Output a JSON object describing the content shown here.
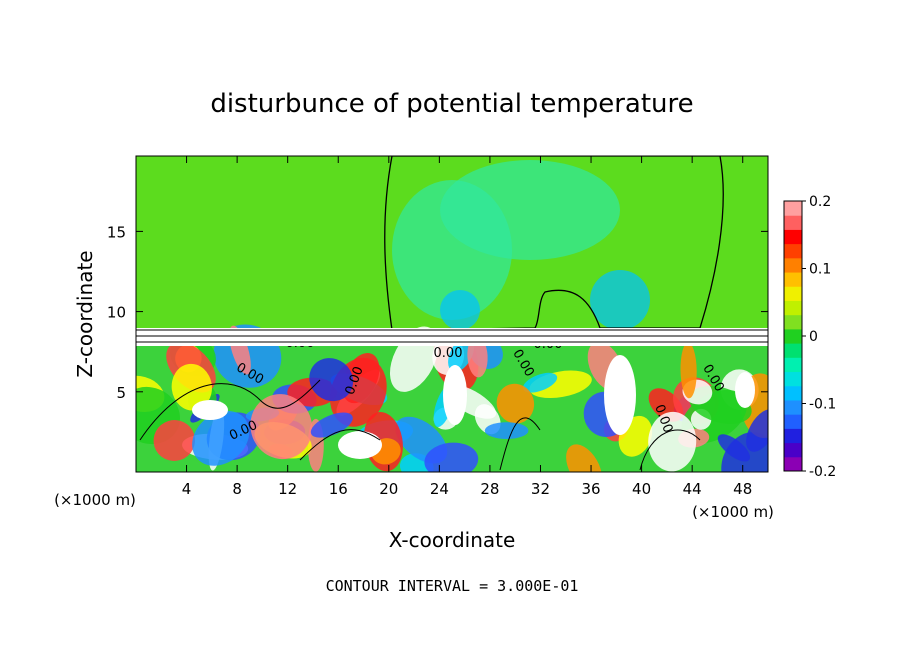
{
  "chart_data": {
    "type": "heatmap",
    "title": "disturbunce of potential temperature",
    "xlabel": "X-coordinate",
    "ylabel": "Z-coordinate",
    "x_unit": "(×1000 m)",
    "y_unit": "(×1000 m)",
    "xlim": [
      0,
      50
    ],
    "ylim": [
      0,
      19.7
    ],
    "x_ticks": [
      "4",
      "8",
      "12",
      "16",
      "20",
      "24",
      "28",
      "32",
      "36",
      "40",
      "44",
      "48"
    ],
    "y_ticks": [
      "5",
      "10",
      "15"
    ],
    "colorbar": {
      "range": [
        -0.2,
        0.2
      ],
      "tick_labels": [
        "0.2",
        "0.1",
        "0",
        "-0.1",
        "-0.2"
      ],
      "colors": [
        "#8b00b4",
        "#4a00c8",
        "#2020e0",
        "#2060ff",
        "#1e90ff",
        "#00c0ff",
        "#00e0e0",
        "#00f0b0",
        "#00e070",
        "#20d020",
        "#80e020",
        "#c0f000",
        "#f0f000",
        "#ffc000",
        "#ff8000",
        "#ff4000",
        "#ff0000",
        "#ff6060",
        "#ffa0a0"
      ]
    },
    "contour_labels": [
      "0.00",
      "0.00",
      "0.00",
      "0.00",
      "0.00",
      "0.00",
      "0.00",
      "0.00",
      "0.00",
      "0.00"
    ],
    "footer": "CONTOUR INTERVAL = 3.000E-01"
  }
}
